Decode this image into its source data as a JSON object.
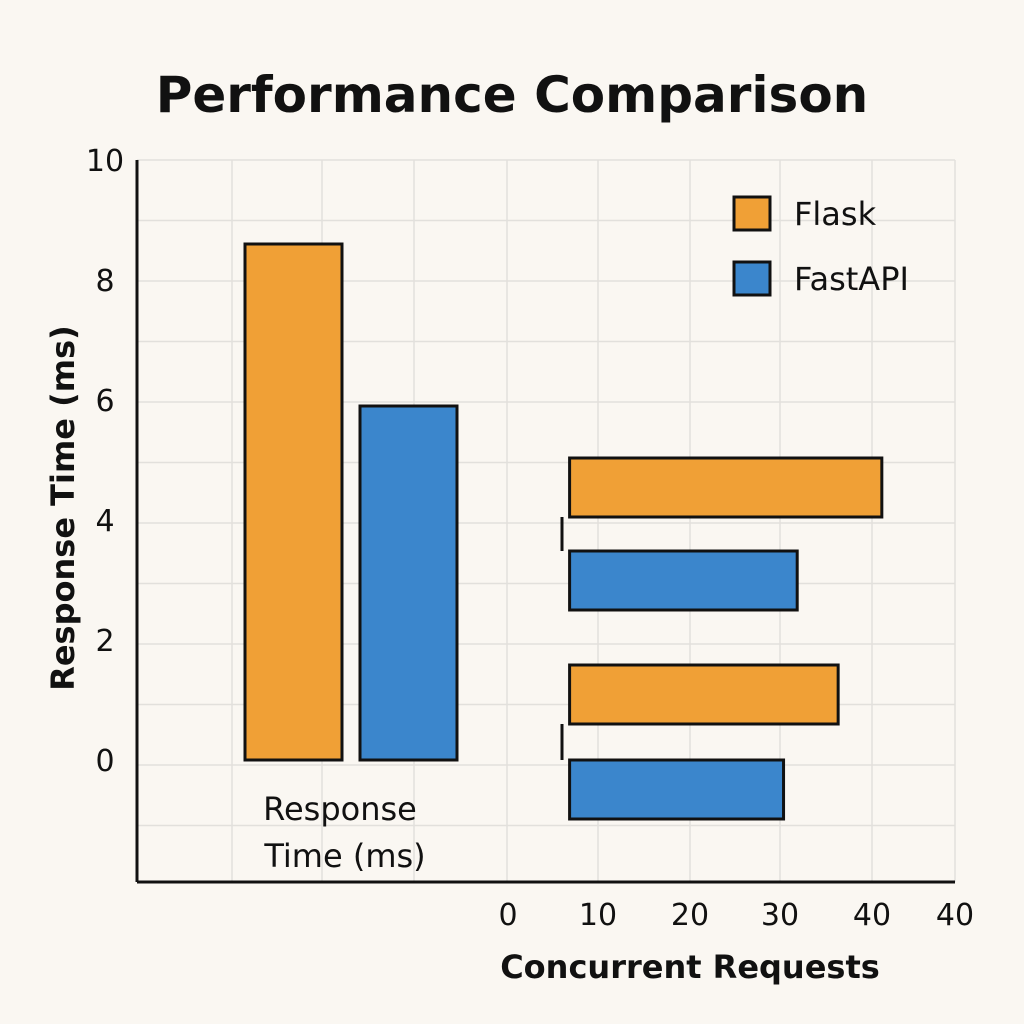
{
  "chart_data": {
    "type": "bar",
    "title": "Performance Comparison",
    "ylabel": "Response Time (ms)",
    "xlabel": "Concurrent Requests",
    "grid": true,
    "legend_position": "top-right",
    "yticks": [
      "0",
      "2",
      "4",
      "6",
      "8",
      "10"
    ],
    "ylim": [
      0,
      10
    ],
    "xticks": [
      "0",
      "10",
      "20",
      "30",
      "40",
      "40"
    ],
    "xlim": [
      0,
      40
    ],
    "vertical_group": {
      "label_line1": "Response",
      "label_line2": "Time (ms)",
      "series": [
        {
          "name": "Flask",
          "value": 8.6
        },
        {
          "name": "FastAPI",
          "value": 5.9
        }
      ]
    },
    "horizontal_bars": {
      "start": 6,
      "bars": [
        {
          "series": "Flask",
          "end": 41.3
        },
        {
          "series": "FastAPI",
          "end": 32
        },
        {
          "series": "Flask",
          "end": 36.5
        },
        {
          "series": "FastAPI",
          "end": 30.5
        }
      ]
    },
    "legend": [
      {
        "name": "Flask",
        "color": "#f0a036"
      },
      {
        "name": "FastAPI",
        "color": "#3b86cc"
      }
    ]
  }
}
